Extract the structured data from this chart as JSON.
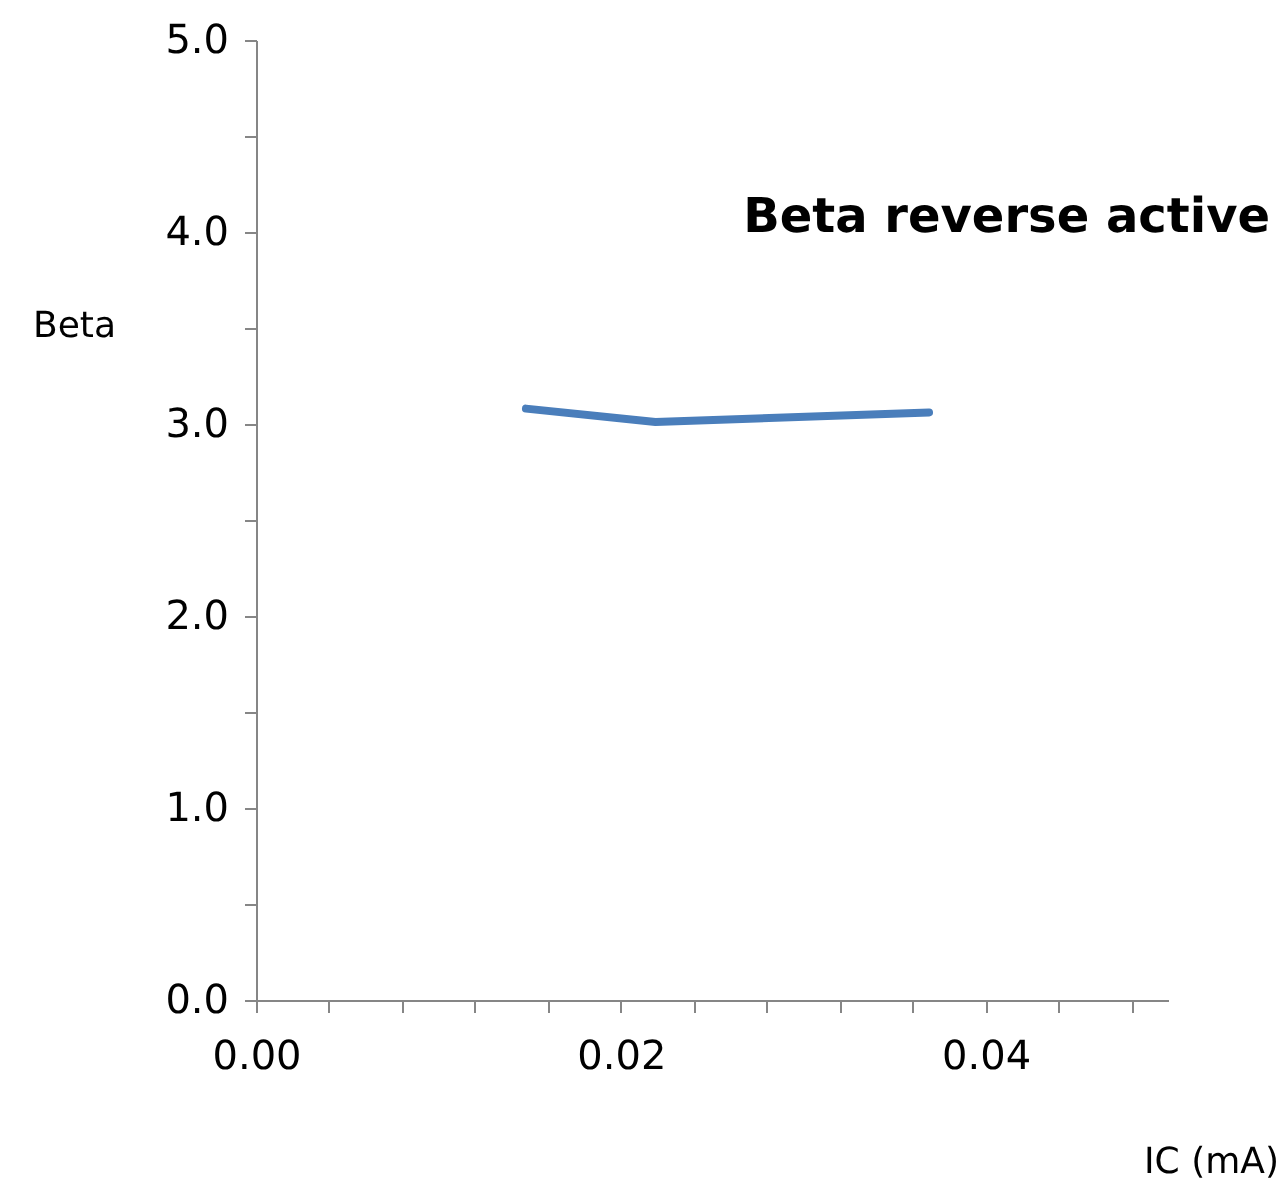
{
  "chart_data": {
    "type": "line",
    "title": "Beta reverse active",
    "xlabel": "IC (mA)",
    "ylabel": "Beta",
    "x": [
      0.0148,
      0.0219,
      0.0369
    ],
    "series": [
      {
        "color": "#4a7ebb",
        "values": [
          3.08,
          3.01,
          3.06
        ]
      }
    ],
    "xlim": [
      0,
      0.05
    ],
    "xticks": [
      {
        "value": 0,
        "label": "0.00"
      },
      {
        "value": 0.004,
        "label": null
      },
      {
        "value": 0.008,
        "label": null
      },
      {
        "value": 0.012,
        "label": null
      },
      {
        "value": 0.016,
        "label": null
      },
      {
        "value": 0.02,
        "label": "0.02"
      },
      {
        "value": 0.024,
        "label": null
      },
      {
        "value": 0.028,
        "label": null
      },
      {
        "value": 0.032,
        "label": null
      },
      {
        "value": 0.036,
        "label": null
      },
      {
        "value": 0.04,
        "label": "0.04"
      },
      {
        "value": 0.044,
        "label": null
      },
      {
        "value": 0.048,
        "label": null
      }
    ],
    "ylim": [
      0,
      5
    ],
    "yticks": [
      {
        "value": 0,
        "label": "0.0"
      },
      {
        "value": 0.5,
        "label": null
      },
      {
        "value": 1,
        "label": "1.0"
      },
      {
        "value": 1.5,
        "label": null
      },
      {
        "value": 2,
        "label": "2.0"
      },
      {
        "value": 2.5,
        "label": null
      },
      {
        "value": 3,
        "label": "3.0"
      },
      {
        "value": 3.5,
        "label": null
      },
      {
        "value": 4,
        "label": "4.0"
      },
      {
        "value": 4.5,
        "label": null
      },
      {
        "value": 5,
        "label": "5.0"
      }
    ],
    "grid": false,
    "marker": "none",
    "line_style": "solid"
  }
}
